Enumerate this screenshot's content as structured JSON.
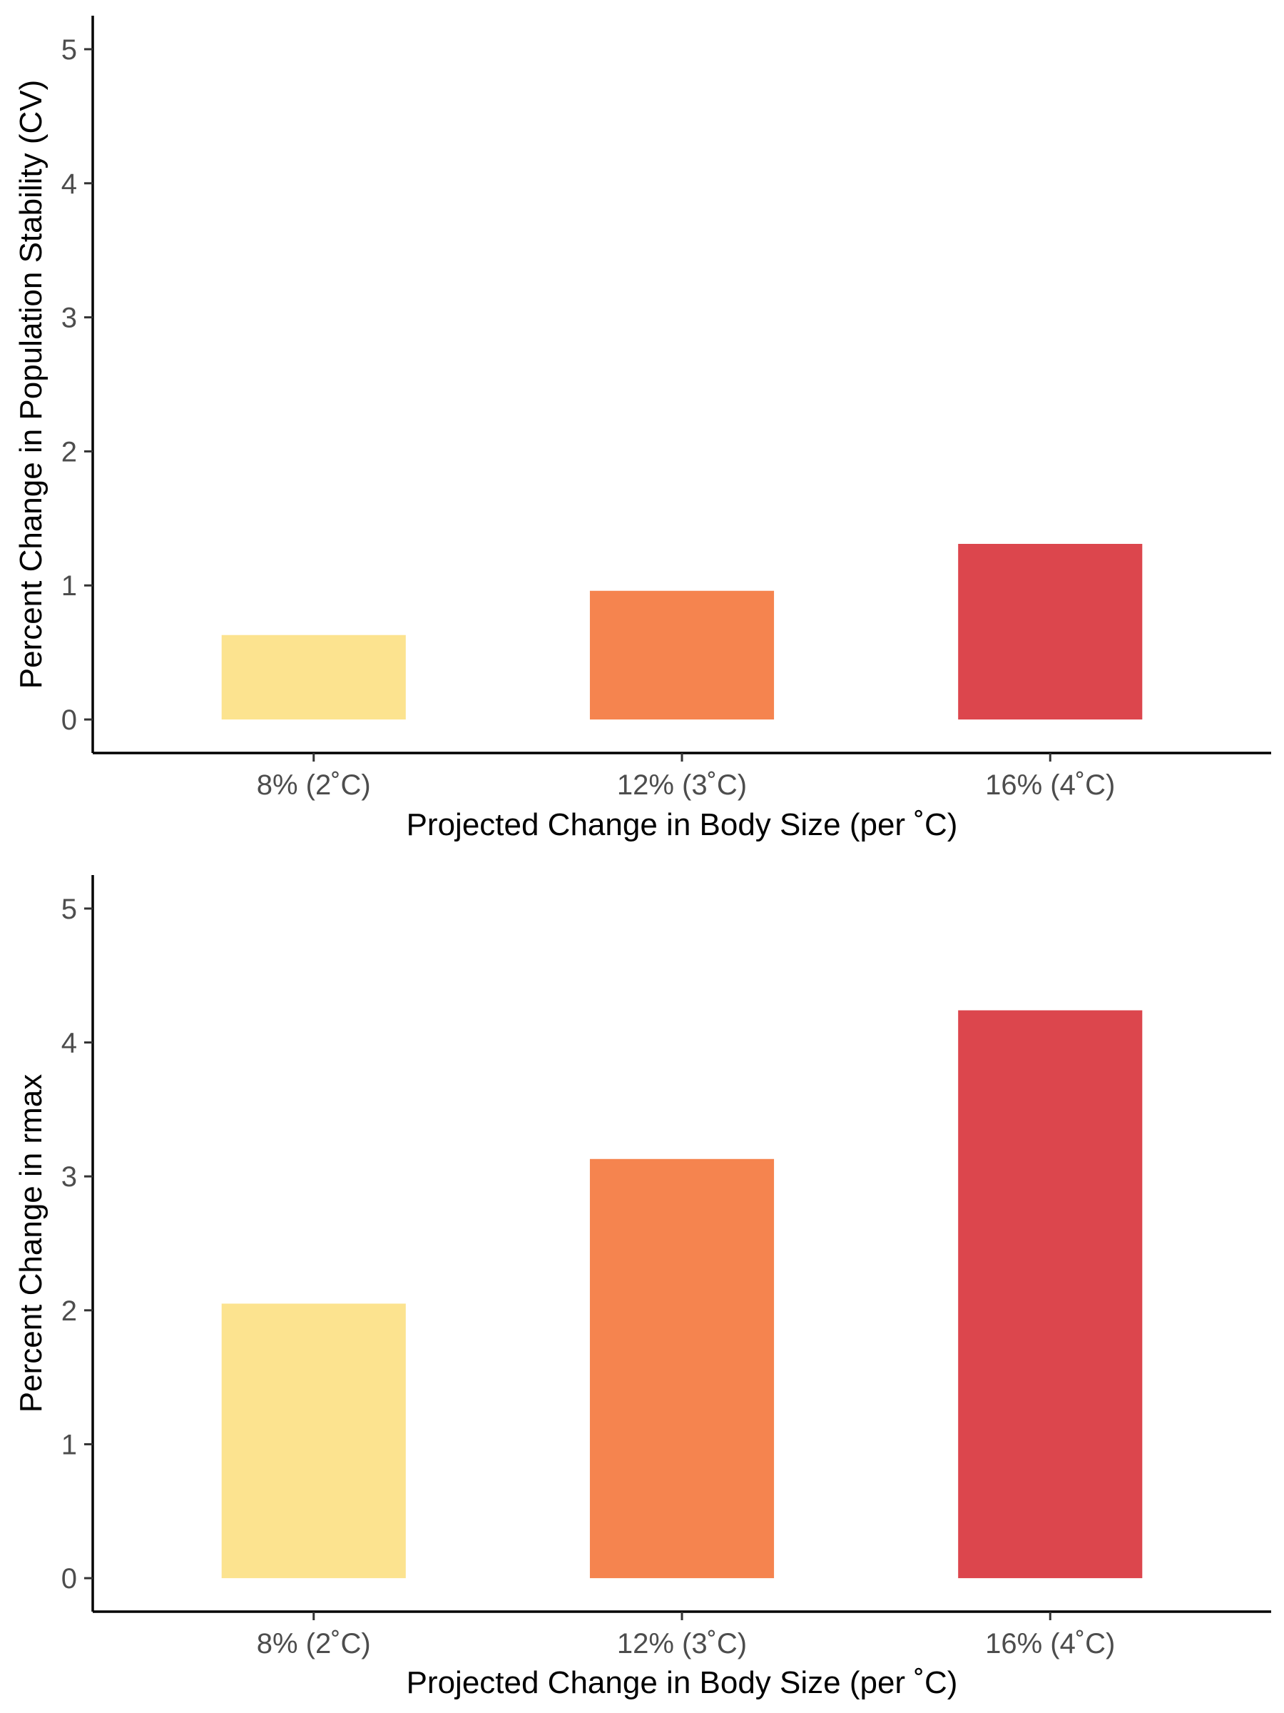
{
  "chart_data": [
    {
      "type": "bar",
      "categories": [
        "8% (2˚C)",
        "12% (3˚C)",
        "16% (4˚C)"
      ],
      "values": [
        0.63,
        0.96,
        1.31
      ],
      "colors": [
        "#FCE38F",
        "#F5844F",
        "#DC464D"
      ],
      "xlabel": "Projected Change in Body Size (per ˚C)",
      "ylabel": "Percent Change in Population Stability (CV)",
      "ylim": [
        -0.25,
        5.25
      ],
      "yticks": [
        0,
        1,
        2,
        3,
        4,
        5
      ],
      "grid": false,
      "legend": "none"
    },
    {
      "type": "bar",
      "categories": [
        "8% (2˚C)",
        "12% (3˚C)",
        "16% (4˚C)"
      ],
      "values": [
        2.05,
        3.13,
        4.24
      ],
      "colors": [
        "#FCE38F",
        "#F5844F",
        "#DC464D"
      ],
      "xlabel": "Projected Change in Body Size (per ˚C)",
      "ylabel": "Percent Change in rmax",
      "ylim": [
        -0.25,
        5.25
      ],
      "yticks": [
        0,
        1,
        2,
        3,
        4,
        5
      ],
      "grid": false,
      "legend": "none"
    }
  ]
}
